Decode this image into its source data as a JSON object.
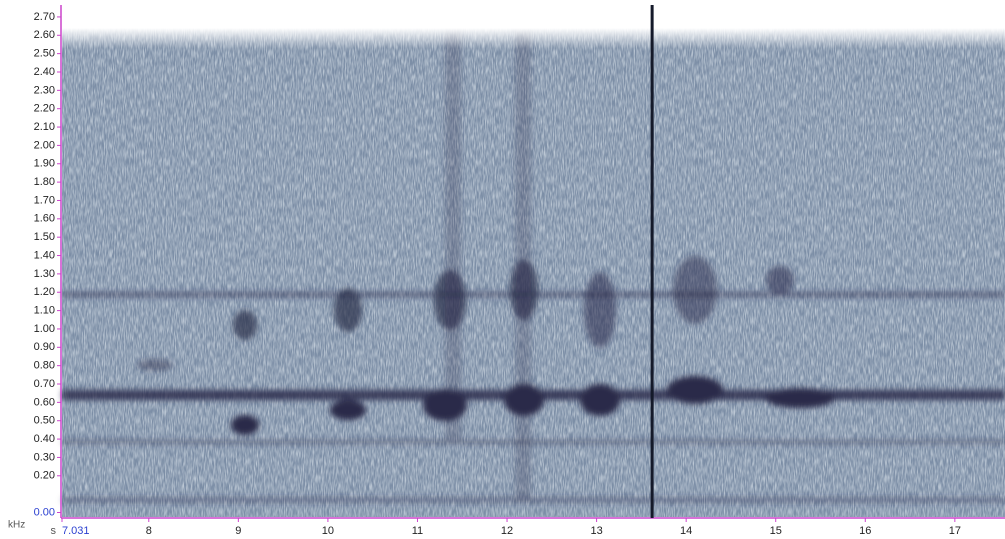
{
  "chart_data": {
    "type": "spectrogram",
    "ylabel": "kHz",
    "xlabel": "s",
    "ylim": [
      -0.03,
      2.765
    ],
    "yticks": [
      {
        "value": 0,
        "label": "0.00"
      },
      {
        "value": 0.2,
        "label": "0.20"
      },
      {
        "value": 0.3,
        "label": "0.30"
      },
      {
        "value": 0.4,
        "label": "0.40"
      },
      {
        "value": 0.5,
        "label": "0.50"
      },
      {
        "value": 0.6,
        "label": "0.60"
      },
      {
        "value": 0.7,
        "label": "0.70"
      },
      {
        "value": 0.8,
        "label": "0.80"
      },
      {
        "value": 0.9,
        "label": "0.90"
      },
      {
        "value": 1,
        "label": "1.00"
      },
      {
        "value": 1.1,
        "label": "1.10"
      },
      {
        "value": 1.2,
        "label": "1.20"
      },
      {
        "value": 1.3,
        "label": "1.30"
      },
      {
        "value": 1.4,
        "label": "1.40"
      },
      {
        "value": 1.5,
        "label": "1.50"
      },
      {
        "value": 1.6,
        "label": "1.60"
      },
      {
        "value": 1.7,
        "label": "1.70"
      },
      {
        "value": 1.8,
        "label": "1.80"
      },
      {
        "value": 1.9,
        "label": "1.90"
      },
      {
        "value": 2,
        "label": "2.00"
      },
      {
        "value": 2.1,
        "label": "2.10"
      },
      {
        "value": 2.2,
        "label": "2.20"
      },
      {
        "value": 2.3,
        "label": "2.30"
      },
      {
        "value": 2.4,
        "label": "2.40"
      },
      {
        "value": 2.5,
        "label": "2.50"
      },
      {
        "value": 2.6,
        "label": "2.60"
      },
      {
        "value": 2.7,
        "label": "2.70"
      }
    ],
    "xlim": [
      7.031,
      17.56
    ],
    "xticks": [
      7.031,
      8,
      9,
      10,
      11,
      12,
      13,
      14,
      15,
      16,
      17
    ],
    "cursor": 13.62
  }
}
